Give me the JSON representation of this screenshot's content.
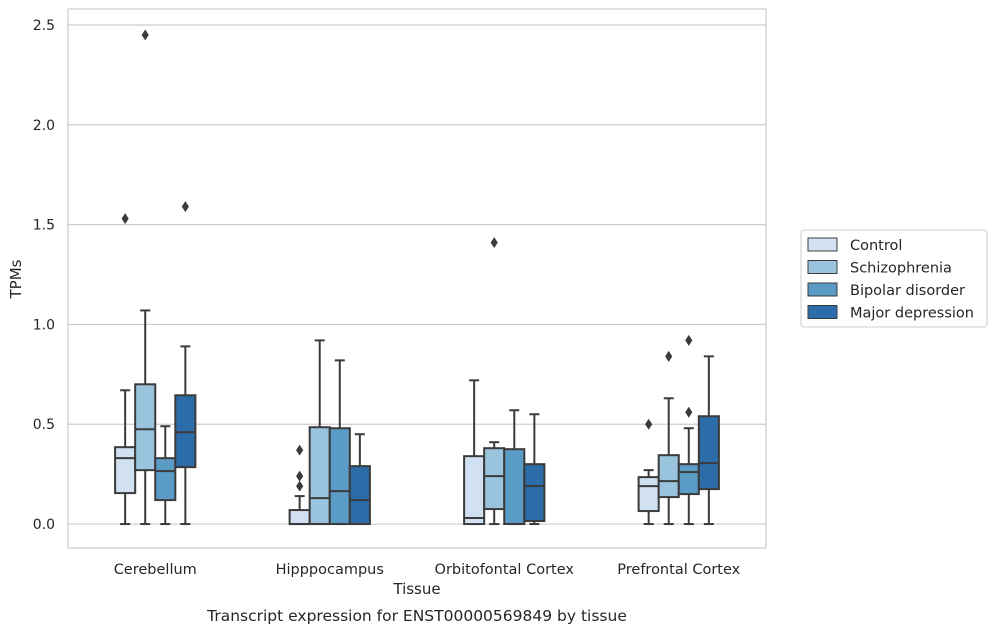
{
  "chart_data": {
    "type": "box",
    "xlabel": "Tissue",
    "ylabel": "TPMs",
    "caption": "Transcript expression for ENST00000569849 by tissue",
    "ylim": [
      -0.12,
      2.58
    ],
    "yticks": [
      0.0,
      0.5,
      1.0,
      1.5,
      2.0,
      2.5
    ],
    "ytick_labels": [
      "0.0",
      "0.5",
      "1.0",
      "1.5",
      "2.0",
      "2.5"
    ],
    "grid": "horizontal",
    "legend_position": "right",
    "categories": [
      "Cerebellum",
      "Hipppocampus",
      "Orbitofontal Cortex",
      "Prefrontal Cortex"
    ],
    "series": [
      {
        "name": "Control",
        "color": "#d2e1f1",
        "boxes": [
          {
            "whisker_low": 0.0,
            "q1": 0.155,
            "median": 0.33,
            "q3": 0.385,
            "whisker_high": 0.67,
            "outliers": [
              1.53
            ]
          },
          {
            "whisker_low": 0.0,
            "q1": 0.0,
            "median": 0.0,
            "q3": 0.07,
            "whisker_high": 0.14,
            "outliers": [
              0.19,
              0.24,
              0.37
            ]
          },
          {
            "whisker_low": 0.0,
            "q1": 0.0,
            "median": 0.03,
            "q3": 0.34,
            "whisker_high": 0.72,
            "outliers": []
          },
          {
            "whisker_low": 0.0,
            "q1": 0.065,
            "median": 0.19,
            "q3": 0.235,
            "whisker_high": 0.27,
            "outliers": [
              0.5
            ]
          }
        ]
      },
      {
        "name": "Schizophrenia",
        "color": "#9ac4dd",
        "boxes": [
          {
            "whisker_low": 0.0,
            "q1": 0.27,
            "median": 0.475,
            "q3": 0.7,
            "whisker_high": 1.07,
            "outliers": [
              2.45
            ]
          },
          {
            "whisker_low": 0.0,
            "q1": 0.0,
            "median": 0.13,
            "q3": 0.485,
            "whisker_high": 0.92,
            "outliers": []
          },
          {
            "whisker_low": 0.0,
            "q1": 0.075,
            "median": 0.24,
            "q3": 0.38,
            "whisker_high": 0.41,
            "outliers": [
              1.41
            ]
          },
          {
            "whisker_low": 0.0,
            "q1": 0.135,
            "median": 0.215,
            "q3": 0.345,
            "whisker_high": 0.63,
            "outliers": [
              0.84
            ]
          }
        ]
      },
      {
        "name": "Bipolar disorder",
        "color": "#5a9cc6",
        "boxes": [
          {
            "whisker_low": 0.0,
            "q1": 0.12,
            "median": 0.265,
            "q3": 0.33,
            "whisker_high": 0.49,
            "outliers": []
          },
          {
            "whisker_low": 0.0,
            "q1": 0.0,
            "median": 0.165,
            "q3": 0.48,
            "whisker_high": 0.82,
            "outliers": []
          },
          {
            "whisker_low": 0.0,
            "q1": 0.0,
            "median": 0.0,
            "q3": 0.375,
            "whisker_high": 0.57,
            "outliers": []
          },
          {
            "whisker_low": 0.0,
            "q1": 0.15,
            "median": 0.26,
            "q3": 0.3,
            "whisker_high": 0.48,
            "outliers": [
              0.56,
              0.92
            ]
          }
        ]
      },
      {
        "name": "Major depression",
        "color": "#2c6ca8",
        "boxes": [
          {
            "whisker_low": 0.0,
            "q1": 0.285,
            "median": 0.46,
            "q3": 0.645,
            "whisker_high": 0.89,
            "outliers": [
              1.59
            ]
          },
          {
            "whisker_low": 0.0,
            "q1": 0.0,
            "median": 0.12,
            "q3": 0.29,
            "whisker_high": 0.45,
            "outliers": []
          },
          {
            "whisker_low": 0.0,
            "q1": 0.015,
            "median": 0.19,
            "q3": 0.3,
            "whisker_high": 0.55,
            "outliers": []
          },
          {
            "whisker_low": 0.0,
            "q1": 0.175,
            "median": 0.305,
            "q3": 0.54,
            "whisker_high": 0.84,
            "outliers": []
          }
        ]
      }
    ]
  }
}
